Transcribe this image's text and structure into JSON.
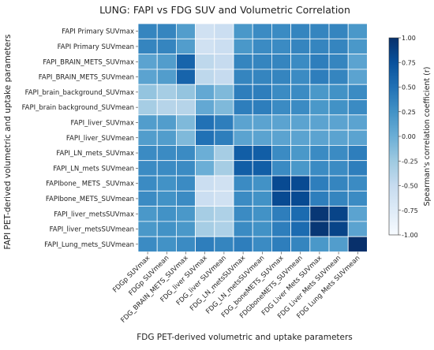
{
  "chart_data": {
    "type": "heatmap",
    "title": "LUNG: FAPI vs FDG SUV and Volumetric Correlation",
    "xlabel": "FDG PET-derived volumetric and uptake parameters",
    "ylabel": "FAPI PET-derived volumetric and uptake parameters",
    "x_categories": [
      "FDGp SUVmax",
      "FDGp SUVmean",
      "FDG_BRAIN_METS_SUVmax",
      "FDG_liver SUVmax",
      "FDG_liver SUVmean",
      "FDG_LN_metsSUVmax",
      "FDG_LN_metsSUVmean",
      "FDG_boneMETS_SUVmax",
      "FDGboneMETS_SUVmean",
      "FDG Liver Mets SUVmax",
      "FDG Liver Mets SUVmean",
      "FDG Lung Mets SUVmean"
    ],
    "y_categories": [
      "FAPI Primary SUVmax",
      "FAPI Primary SUVmean",
      "FAPI_BRAIN_METS_SUVmax",
      "FAPI_BRAIN_METS_SUVmean",
      "FAPI_brain_background_SUVmax",
      "FAPI_brain background_SUVmean",
      "FAPI_liver_SUVmax",
      "FAPI_liver_SUVmean",
      "FAPI_LN_mets_SUVmax",
      "FAPI_LN_mets SUVmean",
      "FAPIbone_ METS _SUVmax",
      "FAPIbone_METS_SUVmean",
      "FAPI_liver_metsSUVmax",
      "FAPI_liver_metsSUVmean",
      "FAPI_Lung_mets_SUVmean"
    ],
    "values": [
      [
        0.35,
        0.35,
        0.15,
        -0.6,
        -0.55,
        0.2,
        0.3,
        0.3,
        0.35,
        0.35,
        0.35,
        0.2
      ],
      [
        0.35,
        0.35,
        0.15,
        -0.6,
        -0.55,
        0.2,
        0.3,
        0.3,
        0.35,
        0.35,
        0.35,
        0.2
      ],
      [
        0.1,
        0.15,
        0.6,
        -0.45,
        -0.5,
        0.35,
        0.35,
        0.35,
        0.3,
        0.4,
        0.35,
        0.1
      ],
      [
        0.1,
        0.15,
        0.6,
        -0.45,
        -0.5,
        0.35,
        0.35,
        0.35,
        0.3,
        0.4,
        0.35,
        0.1
      ],
      [
        -0.2,
        -0.3,
        -0.2,
        0.05,
        -0.1,
        0.4,
        0.4,
        0.3,
        0.3,
        0.2,
        0.25,
        0.3
      ],
      [
        -0.3,
        -0.4,
        -0.4,
        0.05,
        -0.1,
        0.4,
        0.4,
        0.3,
        0.3,
        0.2,
        0.25,
        0.3
      ],
      [
        0.15,
        0.15,
        -0.1,
        0.5,
        0.4,
        0.1,
        0.1,
        0.1,
        0.1,
        0.1,
        0.1,
        0.1
      ],
      [
        0.15,
        0.15,
        -0.1,
        0.5,
        0.4,
        0.1,
        0.1,
        0.1,
        0.1,
        0.1,
        0.1,
        0.1
      ],
      [
        0.3,
        0.3,
        0.3,
        0.0,
        -0.3,
        0.65,
        0.65,
        0.3,
        0.2,
        0.3,
        0.3,
        0.4
      ],
      [
        0.3,
        0.3,
        0.3,
        0.0,
        -0.3,
        0.65,
        0.65,
        0.3,
        0.2,
        0.3,
        0.3,
        0.4
      ],
      [
        0.3,
        0.25,
        0.3,
        -0.55,
        -0.6,
        0.3,
        0.25,
        0.8,
        0.8,
        0.4,
        0.35,
        0.3
      ],
      [
        0.3,
        0.25,
        0.3,
        -0.55,
        -0.6,
        0.3,
        0.25,
        0.8,
        0.8,
        0.4,
        0.35,
        0.3
      ],
      [
        0.2,
        0.25,
        0.2,
        -0.3,
        -0.35,
        0.3,
        0.25,
        0.4,
        0.55,
        0.95,
        0.85,
        0.1
      ],
      [
        0.2,
        0.25,
        0.2,
        -0.3,
        -0.35,
        0.3,
        0.25,
        0.4,
        0.55,
        0.95,
        0.85,
        0.1
      ],
      [
        0.3,
        0.25,
        0.3,
        0.4,
        0.35,
        0.4,
        0.3,
        0.4,
        0.35,
        0.2,
        0.15,
        1.0
      ]
    ],
    "colorbar": {
      "label": "Spearman's correlation coefficient (r)",
      "range": [
        -1.0,
        1.0
      ],
      "ticks": [
        "-1.00",
        "-0.75",
        "-0.50",
        "-0.25",
        "0.00",
        "0.25",
        "0.50",
        "0.75",
        "1.00"
      ]
    },
    "colormap": "Blues",
    "grid": true
  }
}
